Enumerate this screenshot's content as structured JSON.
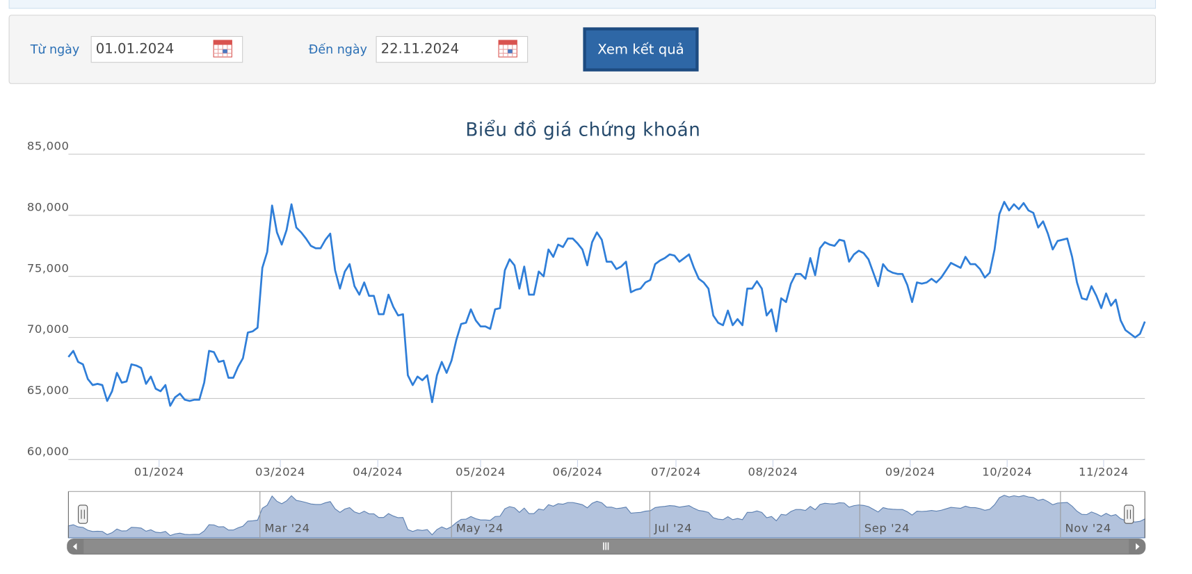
{
  "form": {
    "from_label": "Từ ngày",
    "from_value": "01.01.2024",
    "to_label": "Đến ngày",
    "to_value": "22.11.2024",
    "button": "Xem kết quả"
  },
  "chart_data": {
    "type": "line",
    "title": "Biểu đồ giá chứng khoán",
    "series": [
      {
        "color": "#2f7ed8",
        "values": [
          68400,
          68900,
          68000,
          67800,
          66600,
          66100,
          66200,
          66100,
          64800,
          65600,
          67100,
          66300,
          66400,
          67800,
          67700,
          67500,
          66200,
          66800,
          65800,
          65600,
          66100,
          64400,
          65100,
          65400,
          64900,
          64800,
          64900,
          64900,
          66300,
          68900,
          68800,
          68000,
          68100,
          66700,
          66700,
          67600,
          68300,
          70400,
          70500,
          70800,
          75700,
          77000,
          80800,
          78600,
          77600,
          78800,
          80900,
          79000,
          78600,
          78100,
          77500,
          77300,
          77300,
          78000,
          78500,
          75500,
          74000,
          75400,
          76000,
          74200,
          73500,
          74500,
          73400,
          73400,
          71900,
          71900,
          73500,
          72500,
          71800,
          71900,
          66900,
          66100,
          66800,
          66500,
          66900,
          64700,
          66900,
          68000,
          67100,
          68100,
          69800,
          71100,
          71200,
          72300,
          71400,
          70900,
          70900,
          70700,
          72300,
          72400,
          75500,
          76400,
          75900,
          74000,
          75800,
          73500,
          73500,
          75400,
          75000,
          77200,
          76600,
          77600,
          77400,
          78100,
          78100,
          77700,
          77200,
          75900,
          77800,
          78600,
          78000,
          76200,
          76200,
          75600,
          75800,
          76200,
          73700,
          73900,
          74000,
          74500,
          74700,
          76000,
          76300,
          76500,
          76800,
          76700,
          76200,
          76500,
          76800,
          75700,
          74800,
          74500,
          74000,
          71800,
          71200,
          71000,
          72200,
          71000,
          71500,
          71000,
          74000,
          74000,
          74600,
          74000,
          71800,
          72300,
          70500,
          73200,
          72900,
          74400,
          75200,
          75200,
          74800,
          76500,
          75100,
          77300,
          77800,
          77600,
          77500,
          78000,
          77900,
          76200,
          76800,
          77100,
          76900,
          76400,
          75300,
          74200,
          76000,
          75500,
          75300,
          75200,
          75200,
          74300,
          72900,
          74500,
          74400,
          74500,
          74800,
          74500,
          74900,
          75500,
          76100,
          75900,
          75700,
          76600,
          76000,
          76000,
          75600,
          74900,
          75300,
          77200,
          80100,
          81100,
          80400,
          80900,
          80500,
          81000,
          80400,
          80200,
          79000,
          79500,
          78500,
          77200,
          77900,
          78000,
          78100,
          76600,
          74500,
          73200,
          73100,
          74200,
          73400,
          72400,
          73600,
          72600,
          73100,
          71400,
          70600,
          70300,
          70000,
          70300,
          71300
        ]
      }
    ],
    "xlim": [
      0,
      222
    ],
    "ylim": [
      60000,
      85000
    ],
    "yticks": [
      {
        "value": 60000,
        "label": "60,000"
      },
      {
        "value": 65000,
        "label": "65,000"
      },
      {
        "value": 70000,
        "label": "70,000"
      },
      {
        "value": 75000,
        "label": "75,000"
      },
      {
        "value": 80000,
        "label": "80,000"
      },
      {
        "value": 85000,
        "label": "85,000"
      }
    ],
    "xticks": [
      {
        "value": 18.7,
        "label": "01/2024"
      },
      {
        "value": 43.7,
        "label": "03/2024"
      },
      {
        "value": 63.8,
        "label": "04/2024"
      },
      {
        "value": 85.0,
        "label": "05/2024"
      },
      {
        "value": 105.0,
        "label": "06/2024"
      },
      {
        "value": 125.3,
        "label": "07/2024"
      },
      {
        "value": 145.3,
        "label": "08/2024"
      },
      {
        "value": 173.6,
        "label": "09/2024"
      },
      {
        "value": 193.6,
        "label": "10/2024"
      },
      {
        "value": 213.5,
        "label": "11/2024"
      }
    ],
    "grid": true,
    "navigator": {
      "color": "#b3c3dd",
      "ticks": [
        {
          "value": 39.5,
          "label": "Mar '24"
        },
        {
          "value": 79.0,
          "label": "May '24"
        },
        {
          "value": 119.9,
          "label": "Jul '24"
        },
        {
          "value": 163.2,
          "label": "Sep '24"
        },
        {
          "value": 204.6,
          "label": "Nov '24"
        }
      ]
    }
  }
}
